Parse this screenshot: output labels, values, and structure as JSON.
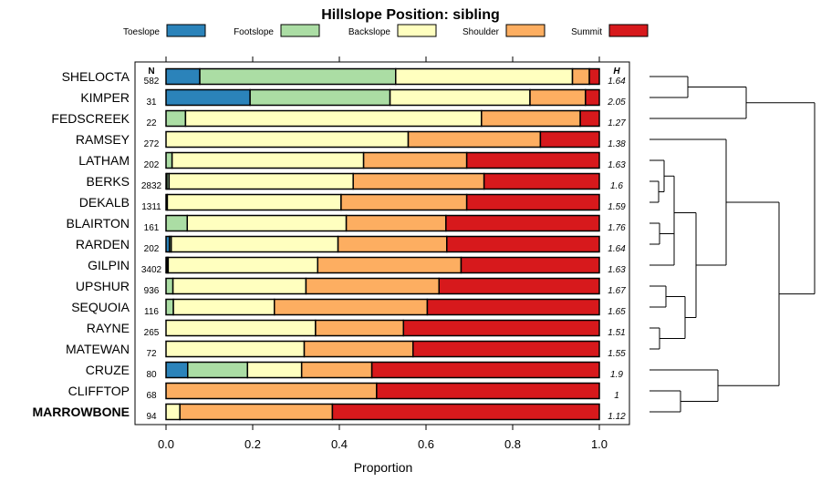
{
  "chart_data": {
    "type": "bar",
    "stacked": true,
    "orientation": "horizontal",
    "title": "Hillslope Position: sibling",
    "xlabel": "Proportion",
    "xlim": [
      0,
      1
    ],
    "xticks": [
      "0.0",
      "0.2",
      "0.4",
      "0.6",
      "0.8",
      "1.0"
    ],
    "xtick_values": [
      0,
      0.2,
      0.4,
      0.6,
      0.8,
      1.0
    ],
    "n_header": "N",
    "h_header": "H",
    "legend_position": "top",
    "series": [
      {
        "name": "Toeslope",
        "color": "#2b83ba"
      },
      {
        "name": "Footslope",
        "color": "#abdda4"
      },
      {
        "name": "Backslope",
        "color": "#ffffbf"
      },
      {
        "name": "Shoulder",
        "color": "#fdae61"
      },
      {
        "name": "Summit",
        "color": "#d7191c"
      }
    ],
    "rows": [
      {
        "label": "SHELOCTA",
        "n": "582",
        "h": "1.64",
        "values": [
          0.078,
          0.452,
          0.408,
          0.039,
          0.023
        ]
      },
      {
        "label": "KIMPER",
        "n": "31",
        "h": "2.05",
        "values": [
          0.194,
          0.323,
          0.323,
          0.128,
          0.032
        ]
      },
      {
        "label": "FEDSCREEK",
        "n": "22",
        "h": "1.27",
        "values": [
          0,
          0.045,
          0.683,
          0.228,
          0.044
        ]
      },
      {
        "label": "RAMSEY",
        "n": "272",
        "h": "1.38",
        "values": [
          0,
          0,
          0.559,
          0.305,
          0.136
        ]
      },
      {
        "label": "LATHAM",
        "n": "202",
        "h": "1.63",
        "values": [
          0,
          0.014,
          0.442,
          0.238,
          0.306
        ]
      },
      {
        "label": "BERKS",
        "n": "2832",
        "h": "1.6",
        "values": [
          0.002,
          0.005,
          0.425,
          0.302,
          0.266
        ]
      },
      {
        "label": "DEKALB",
        "n": "1311",
        "h": "1.59",
        "values": [
          0,
          0.003,
          0.401,
          0.29,
          0.306
        ]
      },
      {
        "label": "BLAIRTON",
        "n": "161",
        "h": "1.76",
        "values": [
          0,
          0.049,
          0.367,
          0.23,
          0.354
        ]
      },
      {
        "label": "RARDEN",
        "n": "202",
        "h": "1.64",
        "values": [
          0.008,
          0.004,
          0.385,
          0.251,
          0.352
        ]
      },
      {
        "label": "GILPIN",
        "n": "3402",
        "h": "1.63",
        "values": [
          0.002,
          0.003,
          0.345,
          0.331,
          0.319
        ]
      },
      {
        "label": "UPSHUR",
        "n": "936",
        "h": "1.67",
        "values": [
          0,
          0.016,
          0.307,
          0.307,
          0.37
        ]
      },
      {
        "label": "SEQUOIA",
        "n": "116",
        "h": "1.65",
        "values": [
          0,
          0.017,
          0.233,
          0.353,
          0.397
        ]
      },
      {
        "label": "RAYNE",
        "n": "265",
        "h": "1.51",
        "values": [
          0,
          0,
          0.345,
          0.203,
          0.452
        ]
      },
      {
        "label": "MATEWAN",
        "n": "72",
        "h": "1.55",
        "values": [
          0,
          0,
          0.319,
          0.251,
          0.43
        ]
      },
      {
        "label": "CRUZE",
        "n": "80",
        "h": "1.9",
        "values": [
          0.05,
          0.138,
          0.125,
          0.162,
          0.525
        ]
      },
      {
        "label": "CLIFFTOP",
        "n": "68",
        "h": "1",
        "values": [
          0,
          0,
          0,
          0.486,
          0.514
        ]
      },
      {
        "label": "MARROWBONE",
        "n": "94",
        "h": "1.12",
        "values": [
          0,
          0,
          0.032,
          0.352,
          0.616
        ],
        "bold": true
      }
    ],
    "dendrogram": {
      "height": 181,
      "children": [
        {
          "height": 106,
          "children": [
            {
              "height": 42,
              "children": [
                {
                  "leaf": 0
                },
                {
                  "leaf": 1
                }
              ]
            },
            {
              "leaf": 2
            }
          ]
        },
        {
          "height": 142,
          "children": [
            {
              "height": 84,
              "children": [
                {
                  "leaf": 3
                },
                {
                  "height": 51,
                  "children": [
                    {
                      "height": 27,
                      "children": [
                        {
                          "height": 16,
                          "children": [
                            {
                              "leaf": 4
                            },
                            {
                              "height": 10,
                              "children": [
                                {
                                  "leaf": 5
                                },
                                {
                                  "leaf": 6
                                }
                              ]
                            }
                          ]
                        },
                        {
                          "height": 27,
                          "children": [
                            {
                              "height": 11,
                              "children": [
                                {
                                  "leaf": 7
                                },
                                {
                                  "leaf": 8
                                }
                              ]
                            },
                            {
                              "leaf": 9
                            }
                          ]
                        }
                      ]
                    },
                    {
                      "height": 39,
                      "children": [
                        {
                          "height": 18,
                          "children": [
                            {
                              "leaf": 10
                            },
                            {
                              "leaf": 11
                            }
                          ]
                        },
                        {
                          "height": 11,
                          "children": [
                            {
                              "leaf": 12
                            },
                            {
                              "leaf": 13
                            }
                          ]
                        }
                      ]
                    }
                  ]
                }
              ]
            },
            {
              "height": 75,
              "children": [
                {
                  "leaf": 14
                },
                {
                  "height": 34,
                  "children": [
                    {
                      "leaf": 15
                    },
                    {
                      "leaf": 16
                    }
                  ]
                }
              ]
            }
          ]
        }
      ]
    }
  }
}
